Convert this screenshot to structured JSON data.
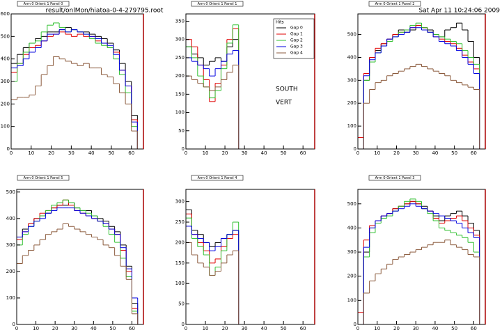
{
  "header": {
    "file": "result/onlMon/hiatoa-0-4-279795.root",
    "date": "Sat Apr 11 10:24:06 2009"
  },
  "chart_data": [
    {
      "type": "histogram",
      "title": "Arm 0 Orient 1 Panel 0",
      "bins": [
        0,
        3,
        6,
        9,
        12,
        15,
        18,
        21,
        24,
        27,
        30,
        33,
        36,
        39,
        42,
        45,
        48,
        51,
        54,
        57,
        60,
        63,
        66
      ],
      "xlim": [
        0,
        66
      ],
      "xticks": [
        0,
        10,
        20,
        30,
        40,
        50,
        60
      ],
      "ylim": [
        0,
        600
      ],
      "yticks": [
        0,
        100,
        200,
        300,
        400,
        500,
        600
      ],
      "series": [
        {
          "color": "#000000",
          "values": [
            380,
            420,
            450,
            470,
            490,
            500,
            520,
            520,
            530,
            540,
            530,
            520,
            520,
            510,
            500,
            490,
            470,
            440,
            380,
            300,
            150,
            0
          ]
        },
        {
          "color": "#e00000",
          "values": [
            340,
            380,
            420,
            450,
            460,
            480,
            500,
            510,
            520,
            510,
            500,
            510,
            500,
            500,
            480,
            470,
            450,
            430,
            350,
            280,
            130,
            0
          ]
        },
        {
          "color": "#30c030",
          "values": [
            300,
            380,
            430,
            470,
            480,
            520,
            550,
            560,
            540,
            520,
            530,
            520,
            510,
            490,
            470,
            460,
            450,
            400,
            330,
            250,
            100,
            0
          ]
        },
        {
          "color": "#0000e0",
          "values": [
            360,
            370,
            400,
            430,
            450,
            480,
            510,
            510,
            530,
            520,
            530,
            520,
            510,
            500,
            490,
            470,
            460,
            420,
            350,
            280,
            120,
            0
          ]
        },
        {
          "color": "#8b5a3c",
          "values": [
            220,
            230,
            230,
            240,
            280,
            330,
            370,
            410,
            400,
            390,
            380,
            370,
            380,
            360,
            360,
            330,
            320,
            290,
            250,
            200,
            80,
            0
          ]
        }
      ]
    },
    {
      "type": "histogram",
      "title": "Arm 0 Orient 1 Panel 1",
      "bins": [
        0,
        3,
        6,
        9,
        12,
        15,
        18,
        21,
        24,
        27
      ],
      "xlim": [
        0,
        66
      ],
      "xticks": [
        0,
        10,
        20,
        30,
        40,
        50,
        60
      ],
      "ylim": [
        0,
        370
      ],
      "yticks": [
        0,
        50,
        100,
        150,
        200,
        250,
        300,
        350
      ],
      "legend_title": "Hits",
      "annotations": [
        "SOUTH",
        "VERT"
      ],
      "series": [
        {
          "name": "Gap 0",
          "color": "#000000",
          "values": [
            280,
            260,
            250,
            230,
            240,
            250,
            240,
            280,
            300
          ]
        },
        {
          "name": "Gap 1",
          "color": "#e00000",
          "values": [
            300,
            280,
            230,
            190,
            130,
            180,
            230,
            300,
            330
          ]
        },
        {
          "name": "Gap 2",
          "color": "#30c030",
          "values": [
            280,
            250,
            200,
            170,
            140,
            160,
            220,
            290,
            340
          ]
        },
        {
          "name": "Gap 3",
          "color": "#0000e0",
          "values": [
            250,
            240,
            230,
            220,
            200,
            220,
            240,
            260,
            270
          ]
        },
        {
          "name": "Gap 4",
          "color": "#8b5a3c",
          "values": [
            200,
            190,
            180,
            170,
            160,
            170,
            190,
            210,
            230
          ]
        }
      ]
    },
    {
      "type": "histogram",
      "title": "Arm 0 Orient 1 Panel 2",
      "bins": [
        0,
        3,
        6,
        9,
        12,
        15,
        18,
        21,
        24,
        27,
        30,
        33,
        36,
        39,
        42,
        45,
        48,
        51,
        54,
        57,
        60,
        63,
        66
      ],
      "xlim": [
        0,
        66
      ],
      "xticks": [
        0,
        10,
        20,
        30,
        40,
        50,
        60
      ],
      "ylim": [
        0,
        590
      ],
      "yticks": [
        0,
        100,
        200,
        300,
        400,
        500
      ],
      "series": [
        {
          "color": "#000000",
          "values": [
            0,
            300,
            400,
            430,
            460,
            480,
            500,
            520,
            510,
            520,
            540,
            530,
            520,
            500,
            490,
            520,
            530,
            550,
            520,
            470,
            400,
            0
          ]
        },
        {
          "color": "#e00000",
          "values": [
            50,
            330,
            400,
            440,
            460,
            480,
            500,
            510,
            520,
            530,
            540,
            530,
            510,
            490,
            480,
            470,
            460,
            440,
            410,
            380,
            350,
            0
          ]
        },
        {
          "color": "#30c030",
          "values": [
            0,
            300,
            380,
            420,
            450,
            470,
            490,
            510,
            520,
            540,
            550,
            530,
            510,
            500,
            490,
            480,
            470,
            460,
            430,
            400,
            370,
            0
          ]
        },
        {
          "color": "#0000e0",
          "values": [
            0,
            320,
            390,
            420,
            450,
            480,
            490,
            500,
            510,
            530,
            530,
            520,
            510,
            490,
            470,
            460,
            450,
            430,
            400,
            370,
            330,
            0
          ]
        },
        {
          "color": "#8b5a3c",
          "values": [
            0,
            200,
            260,
            290,
            300,
            320,
            330,
            340,
            350,
            360,
            370,
            360,
            350,
            340,
            330,
            320,
            300,
            290,
            280,
            270,
            260,
            0
          ]
        }
      ]
    },
    {
      "type": "histogram",
      "title": "Arm 0 Orient 1 Panel 5",
      "bins": [
        0,
        3,
        6,
        9,
        12,
        15,
        18,
        21,
        24,
        27,
        30,
        33,
        36,
        39,
        42,
        45,
        48,
        51,
        54,
        57,
        60,
        63,
        66
      ],
      "xlim": [
        0,
        66
      ],
      "xticks": [
        0,
        10,
        20,
        30,
        40,
        50,
        60
      ],
      "ylim": [
        0,
        510
      ],
      "yticks": [
        0,
        100,
        200,
        300,
        400,
        500
      ],
      "series": [
        {
          "color": "#000000",
          "values": [
            330,
            360,
            380,
            400,
            410,
            420,
            440,
            450,
            450,
            460,
            440,
            430,
            430,
            410,
            400,
            390,
            370,
            350,
            300,
            220,
            80,
            0
          ]
        },
        {
          "color": "#e00000",
          "values": [
            320,
            350,
            380,
            400,
            420,
            430,
            440,
            450,
            470,
            450,
            430,
            420,
            410,
            400,
            390,
            380,
            360,
            340,
            280,
            200,
            60,
            0
          ]
        },
        {
          "color": "#30c030",
          "values": [
            300,
            340,
            370,
            390,
            410,
            430,
            450,
            460,
            470,
            460,
            440,
            430,
            420,
            410,
            390,
            370,
            340,
            310,
            250,
            180,
            50,
            0
          ]
        },
        {
          "color": "#0000e0",
          "values": [
            330,
            350,
            370,
            390,
            400,
            420,
            430,
            440,
            440,
            440,
            430,
            420,
            410,
            400,
            390,
            380,
            360,
            340,
            290,
            210,
            100,
            0
          ]
        },
        {
          "color": "#8b5a3c",
          "values": [
            230,
            260,
            280,
            300,
            320,
            340,
            350,
            360,
            380,
            370,
            360,
            350,
            340,
            330,
            320,
            300,
            290,
            260,
            220,
            170,
            40,
            0
          ]
        }
      ]
    },
    {
      "type": "histogram",
      "title": "Arm 0 Orient 1 Panel 4",
      "bins": [
        0,
        3,
        6,
        9,
        12,
        15,
        18,
        21,
        24,
        27
      ],
      "xlim": [
        0,
        66
      ],
      "xticks": [
        0,
        10,
        20,
        30,
        40,
        50,
        60
      ],
      "ylim": [
        0,
        330
      ],
      "yticks": [
        0,
        50,
        100,
        150,
        200,
        250,
        300
      ],
      "series": [
        {
          "color": "#000000",
          "values": [
            280,
            230,
            220,
            200,
            190,
            200,
            210,
            220,
            230
          ]
        },
        {
          "color": "#e00000",
          "values": [
            270,
            220,
            200,
            180,
            150,
            160,
            190,
            210,
            220
          ]
        },
        {
          "color": "#30c030",
          "values": [
            260,
            210,
            190,
            170,
            120,
            140,
            180,
            220,
            250
          ]
        },
        {
          "color": "#0000e0",
          "values": [
            240,
            220,
            210,
            200,
            180,
            190,
            210,
            220,
            230
          ]
        },
        {
          "color": "#8b5a3c",
          "values": [
            200,
            170,
            150,
            140,
            120,
            130,
            150,
            170,
            180
          ]
        }
      ]
    },
    {
      "type": "histogram",
      "title": "Arm 0 Orient 1 Panel 3",
      "bins": [
        0,
        3,
        6,
        9,
        12,
        15,
        18,
        21,
        24,
        27,
        30,
        33,
        36,
        39,
        42,
        45,
        48,
        51,
        54,
        57,
        60,
        63,
        66
      ],
      "xlim": [
        0,
        66
      ],
      "xticks": [
        0,
        10,
        20,
        30,
        40,
        50,
        60
      ],
      "ylim": [
        0,
        560
      ],
      "yticks": [
        0,
        100,
        200,
        300,
        400,
        500
      ],
      "series": [
        {
          "color": "#000000",
          "values": [
            0,
            300,
            400,
            430,
            450,
            460,
            480,
            490,
            500,
            510,
            500,
            490,
            470,
            450,
            430,
            450,
            460,
            470,
            450,
            420,
            390,
            0
          ]
        },
        {
          "color": "#e00000",
          "values": [
            50,
            350,
            410,
            430,
            450,
            460,
            480,
            490,
            500,
            510,
            500,
            480,
            470,
            440,
            420,
            430,
            440,
            450,
            430,
            400,
            370,
            0
          ]
        },
        {
          "color": "#30c030",
          "values": [
            0,
            280,
            380,
            420,
            440,
            450,
            470,
            490,
            510,
            520,
            510,
            480,
            460,
            430,
            400,
            390,
            380,
            370,
            360,
            340,
            300,
            0
          ]
        },
        {
          "color": "#0000e0",
          "values": [
            0,
            320,
            400,
            430,
            450,
            460,
            470,
            480,
            490,
            500,
            490,
            480,
            470,
            460,
            450,
            440,
            430,
            420,
            400,
            380,
            360,
            0
          ]
        },
        {
          "color": "#8b5a3c",
          "values": [
            0,
            130,
            180,
            210,
            230,
            250,
            270,
            280,
            290,
            300,
            310,
            320,
            330,
            340,
            340,
            350,
            330,
            320,
            310,
            290,
            280,
            0
          ]
        }
      ]
    }
  ]
}
